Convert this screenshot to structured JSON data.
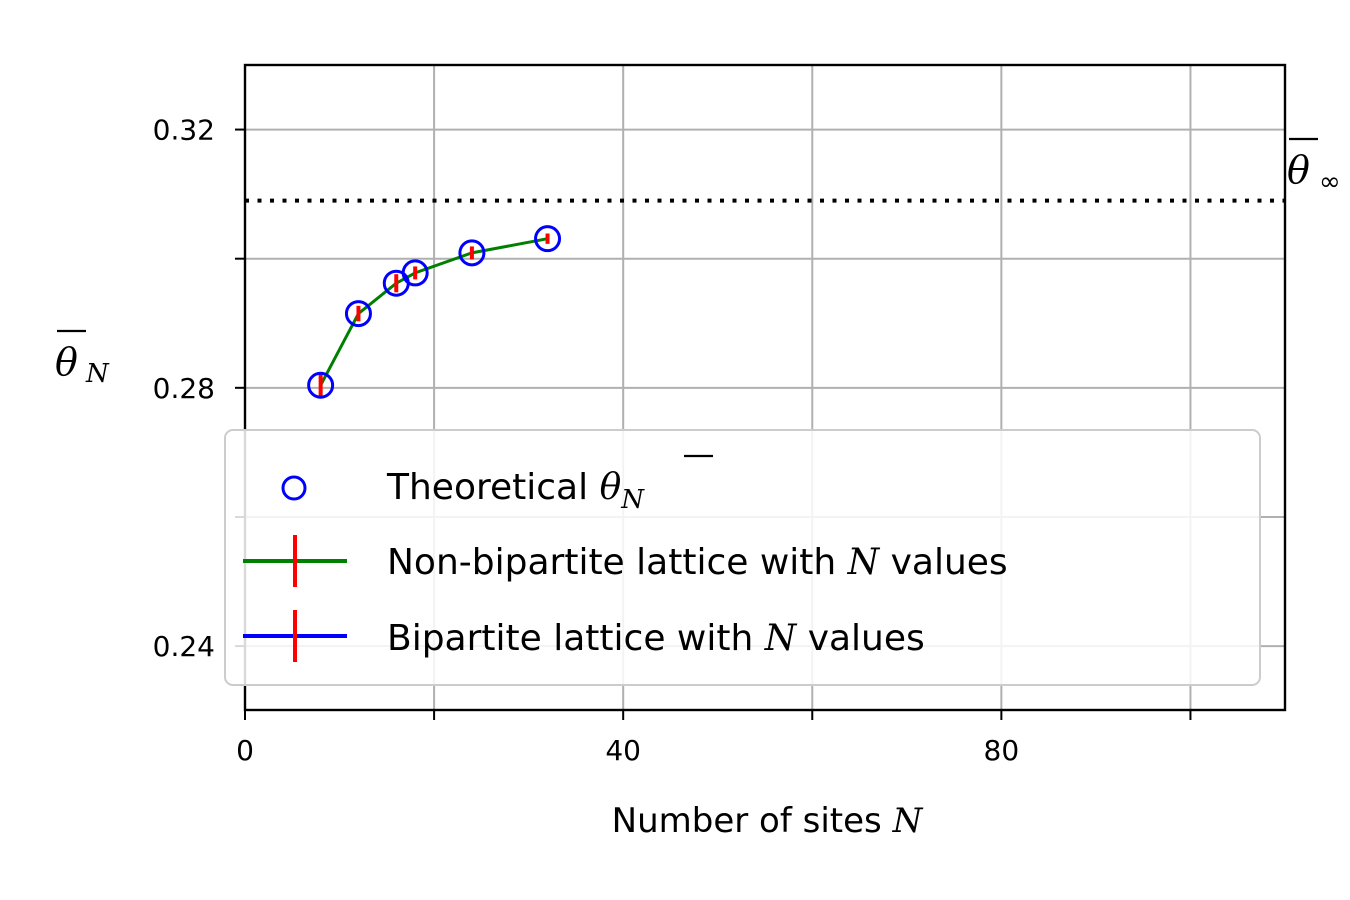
{
  "chart_data": {
    "type": "scatter",
    "xlabel": {
      "text": "Number of sites ",
      "var": "N"
    },
    "ylabel": {
      "symbol": "θ",
      "subscript": "N"
    },
    "xlim": [
      0,
      110
    ],
    "ylim": [
      0.2301,
      0.33
    ],
    "x_ticks": [
      0,
      20,
      40,
      60,
      80,
      100
    ],
    "x_tick_labels": [
      "0",
      "",
      "40",
      "",
      "80",
      ""
    ],
    "y_ticks": [
      0.24,
      0.26,
      0.28,
      0.3,
      0.32
    ],
    "y_tick_labels": [
      "0.24",
      "",
      "0.28",
      "",
      "0.32"
    ],
    "grid": true,
    "limit_line": {
      "y": 0.309,
      "style": "dotted",
      "color": "#000000",
      "label_symbol": "θ",
      "label_subscript": "∞"
    },
    "series": [
      {
        "name": "Theoretical",
        "name_symbol": "θ",
        "name_subscript": "N",
        "kind": "scatter-open-circle",
        "color": "#0000ff",
        "x": [
          8,
          12,
          16,
          18,
          24,
          32
        ],
        "y": [
          0.2804,
          0.2915,
          0.2962,
          0.2978,
          0.3009,
          0.3031
        ]
      },
      {
        "name": "Non-bipartite lattice with ",
        "name_var": "N",
        "name_suffix": " values",
        "kind": "line-errorbar",
        "color": "#008000",
        "error_color": "#ff0000",
        "x": [
          8,
          12,
          16,
          18,
          24,
          32
        ],
        "y": [
          0.2804,
          0.2915,
          0.2962,
          0.2978,
          0.3009,
          0.3031
        ],
        "yerr": [
          0.0018,
          0.0012,
          0.0014,
          0.001,
          0.001,
          0.0008
        ]
      },
      {
        "name": "Bipartite lattice with ",
        "name_var": "N",
        "name_suffix": " values",
        "kind": "line-errorbar",
        "color": "#0000ff",
        "error_color": "#ff0000",
        "x": [],
        "y": [],
        "yerr": []
      }
    ],
    "legend_position": "lower-center"
  }
}
